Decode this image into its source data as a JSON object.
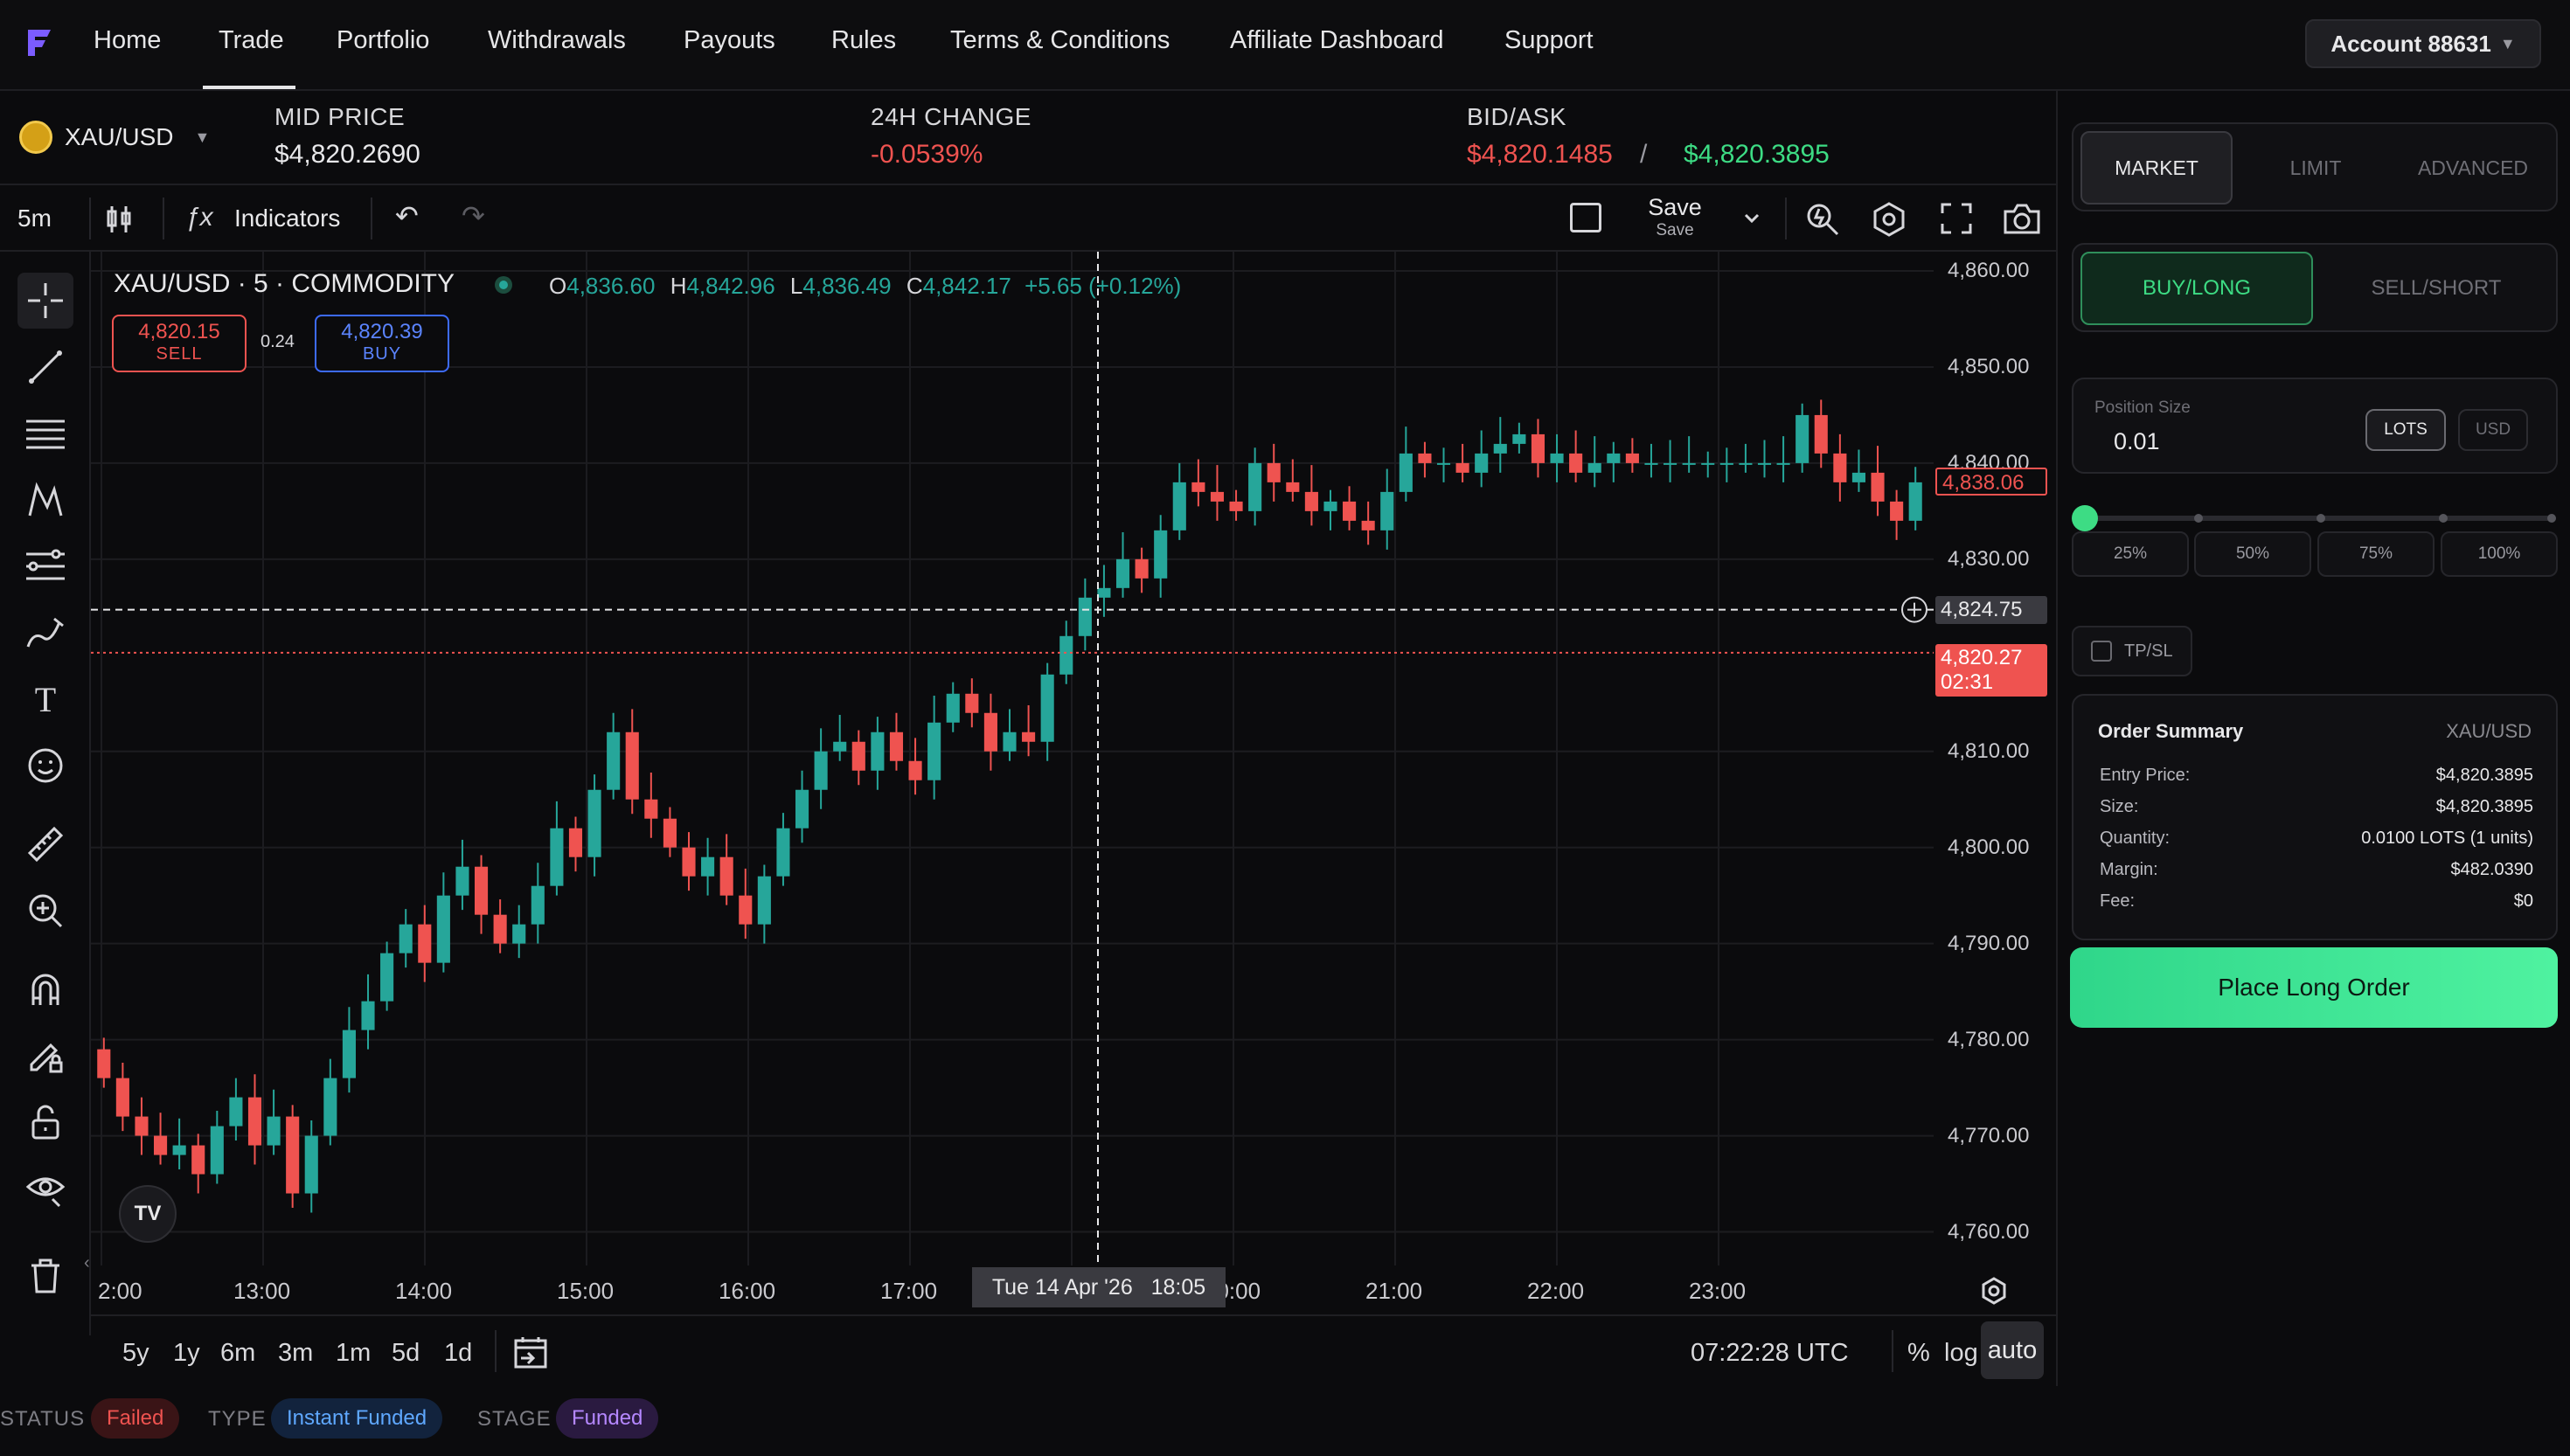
{
  "nav": {
    "items": [
      "Home",
      "Trade",
      "Portfolio",
      "Withdrawals",
      "Payouts",
      "Rules",
      "Terms & Conditions",
      "Affiliate Dashboard",
      "Support"
    ],
    "active": "Trade",
    "account_label": "Account 88631",
    "account_caret": "▼"
  },
  "ticker": {
    "symbol": "XAU/USD",
    "symbol_caret": "▼",
    "mid_label": "MID PRICE",
    "mid_value": "$4,820.2690",
    "change_label": "24H CHANGE",
    "change_value": "-0.0539%",
    "bidask_label": "BID/ASK",
    "bid_value": "$4,820.1485",
    "separator": "/",
    "ask_value": "$4,820.3895"
  },
  "toolbar": {
    "interval": "5m",
    "indicators_label": "Indicators",
    "save_label": "Save",
    "save_sub": "Save"
  },
  "chart_header": {
    "title": "XAU/USD · 5 · COMMODITY",
    "o_label": "O",
    "o_value": "4,836.60",
    "h_label": "H",
    "h_value": "4,842.96",
    "l_label": "L",
    "l_value": "4,836.49",
    "c_label": "C",
    "c_value": "4,842.17",
    "change": "+5.65 (+0.12%)",
    "sell_price": "4,820.15",
    "sell_label": "SELL",
    "spread": "0.24",
    "buy_price": "4,820.39",
    "buy_label": "BUY"
  },
  "chart_data": {
    "type": "candlestick",
    "y_ticks": [
      "4,860.00",
      "4,850.00",
      "4,840.00",
      "4,830.00",
      "4,810.00",
      "4,800.00",
      "4,790.00",
      "4,780.00",
      "4,770.00",
      "4,760.00"
    ],
    "y_tick_values": [
      4860,
      4850,
      4840,
      4830,
      4810,
      4800,
      4790,
      4780,
      4770,
      4760
    ],
    "ylim": [
      4756.5,
      4862
    ],
    "x_ticks": [
      "2:00",
      "13:00",
      "14:00",
      "15:00",
      "16:00",
      "17:00",
      "9:00",
      "20:00",
      "21:00",
      "22:00",
      "23:00"
    ],
    "last_price_label": "4,838.06",
    "crosshair_price_label": "4,824.75",
    "current_price_label": "4,820.27",
    "countdown": "02:31",
    "crosshair_time_label": "Tue 14 Apr '26   18:05",
    "candles_description": "5m OHLC candles",
    "closes": [
      4776,
      4772,
      4770,
      4768,
      4769,
      4766,
      4771,
      4774,
      4769,
      4772,
      4764,
      4770,
      4776,
      4781,
      4784,
      4789,
      4792,
      4788,
      4795,
      4798,
      4793,
      4790,
      4792,
      4796,
      4802,
      4799,
      4806,
      4812,
      4805,
      4803,
      4800,
      4797,
      4799,
      4795,
      4792,
      4797,
      4802,
      4806,
      4810,
      4811,
      4808,
      4812,
      4809,
      4807,
      4813,
      4816,
      4814,
      4810,
      4812,
      4811,
      4818,
      4822,
      4826,
      4827,
      4830,
      4828,
      4833,
      4838,
      4837,
      4836,
      4835,
      4840,
      4838,
      4837,
      4835,
      4836,
      4834,
      4833,
      4837,
      4841,
      4840,
      4840,
      4839,
      4841,
      4842,
      4843,
      4840,
      4841,
      4839,
      4840,
      4841,
      4840,
      4840,
      4840,
      4840,
      4840,
      4840,
      4840,
      4840,
      4840,
      4845,
      4841,
      4838,
      4839,
      4836,
      4834,
      4838
    ]
  },
  "range_bar": {
    "ranges": [
      "5y",
      "1y",
      "6m",
      "3m",
      "1m",
      "5d",
      "1d"
    ],
    "clock": "07:22:28 UTC",
    "pct": "%",
    "log": "log",
    "auto": "auto"
  },
  "status": {
    "status_label": "STATUS",
    "status_value": "Failed",
    "type_label": "TYPE",
    "type_value": "Instant Funded",
    "stage_label": "STAGE",
    "stage_value": "Funded"
  },
  "order_panel": {
    "order_types": [
      "MARKET",
      "LIMIT",
      "ADVANCED"
    ],
    "sides": [
      "BUY/LONG",
      "SELL/SHORT"
    ],
    "position_size_label": "Position Size",
    "position_size_value": "0.01",
    "unit_lots": "LOTS",
    "unit_usd": "USD",
    "slider_fraction": 0,
    "percents": [
      "25%",
      "50%",
      "75%",
      "100%"
    ],
    "tpsl_label": "TP/SL",
    "summary_title": "Order Summary",
    "summary_symbol": "XAU/USD",
    "summary_rows": [
      {
        "label": "Entry Price:",
        "value": "$4,820.3895"
      },
      {
        "label": "Size:",
        "value": "$4,820.3895"
      },
      {
        "label": "Quantity:",
        "value": "0.0100 LOTS (1 units)"
      },
      {
        "label": "Margin:",
        "value": "$482.0390"
      },
      {
        "label": "Fee:",
        "value": "$0"
      }
    ],
    "place_order_label": "Place Long Order"
  },
  "colors": {
    "up": "#26a69a",
    "down": "#ef5350",
    "accent_green": "#3ddc84",
    "bid": "#ef5350",
    "ask": "#3ddc84"
  }
}
